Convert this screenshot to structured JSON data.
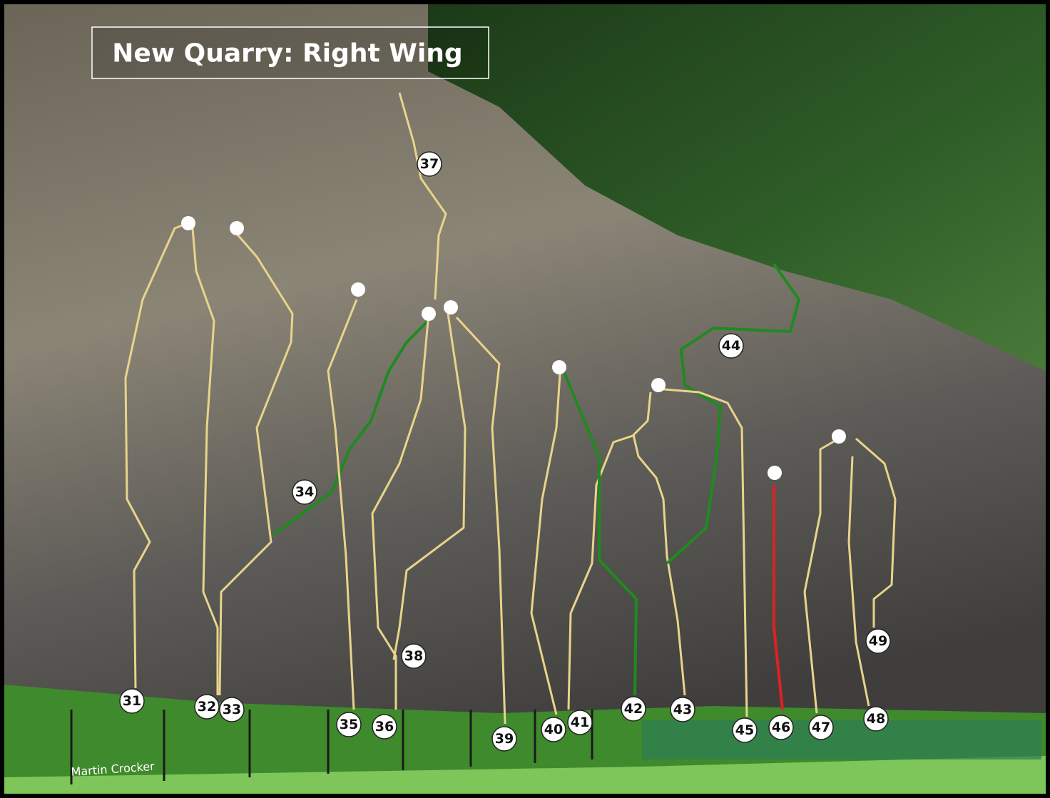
{
  "title": "New Quarry: Right Wing",
  "credit": "Martin Crocker",
  "routes": [
    "31",
    "32",
    "33",
    "34",
    "35",
    "36",
    "37",
    "38",
    "39",
    "40",
    "41",
    "42",
    "43",
    "44",
    "45",
    "46",
    "47",
    "48",
    "49"
  ]
}
